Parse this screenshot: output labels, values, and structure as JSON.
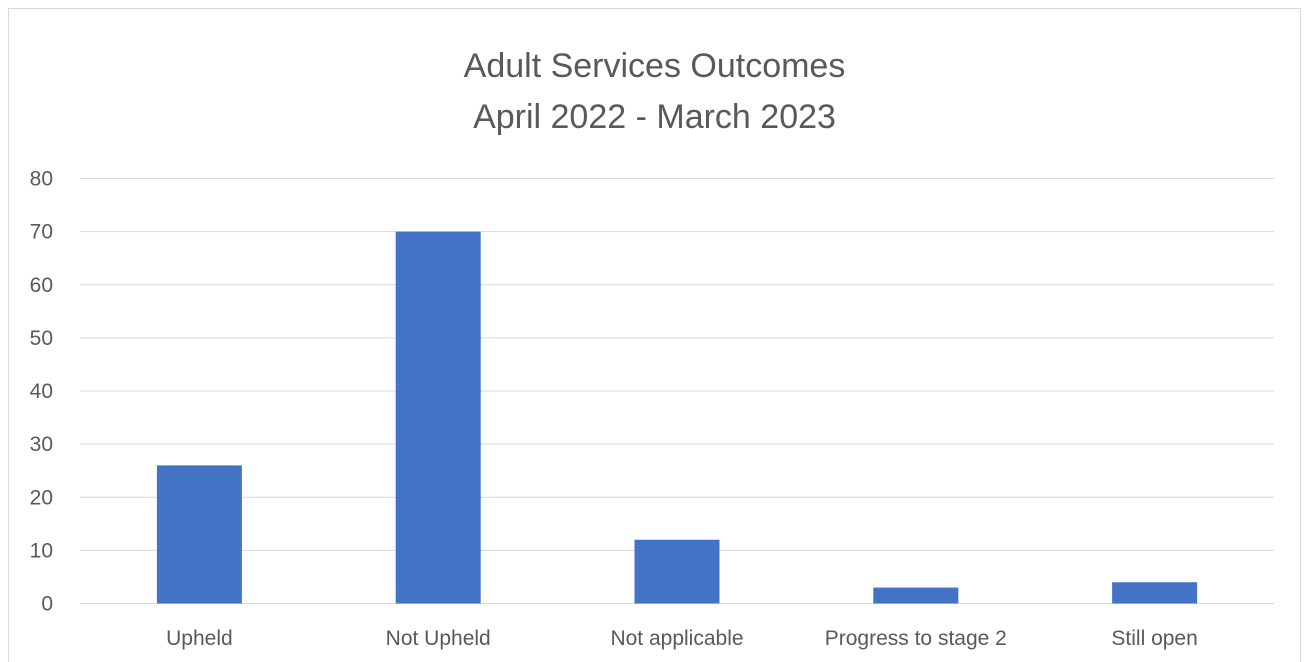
{
  "chart_data": {
    "type": "bar",
    "title": [
      "Adult Services Outcomes",
      "April 2022 - March 2023"
    ],
    "categories": [
      "Upheld",
      "Not Upheld",
      "Not applicable",
      "Progress to stage 2",
      "Still open"
    ],
    "values": [
      26,
      70,
      12,
      3,
      4
    ],
    "ylim": [
      0,
      80
    ],
    "yticks": [
      "0",
      "10",
      "20",
      "30",
      "40",
      "50",
      "60",
      "70",
      "80"
    ],
    "grid": true,
    "bar_color": "#4472c4",
    "grid_color": "#d9d9d9"
  }
}
